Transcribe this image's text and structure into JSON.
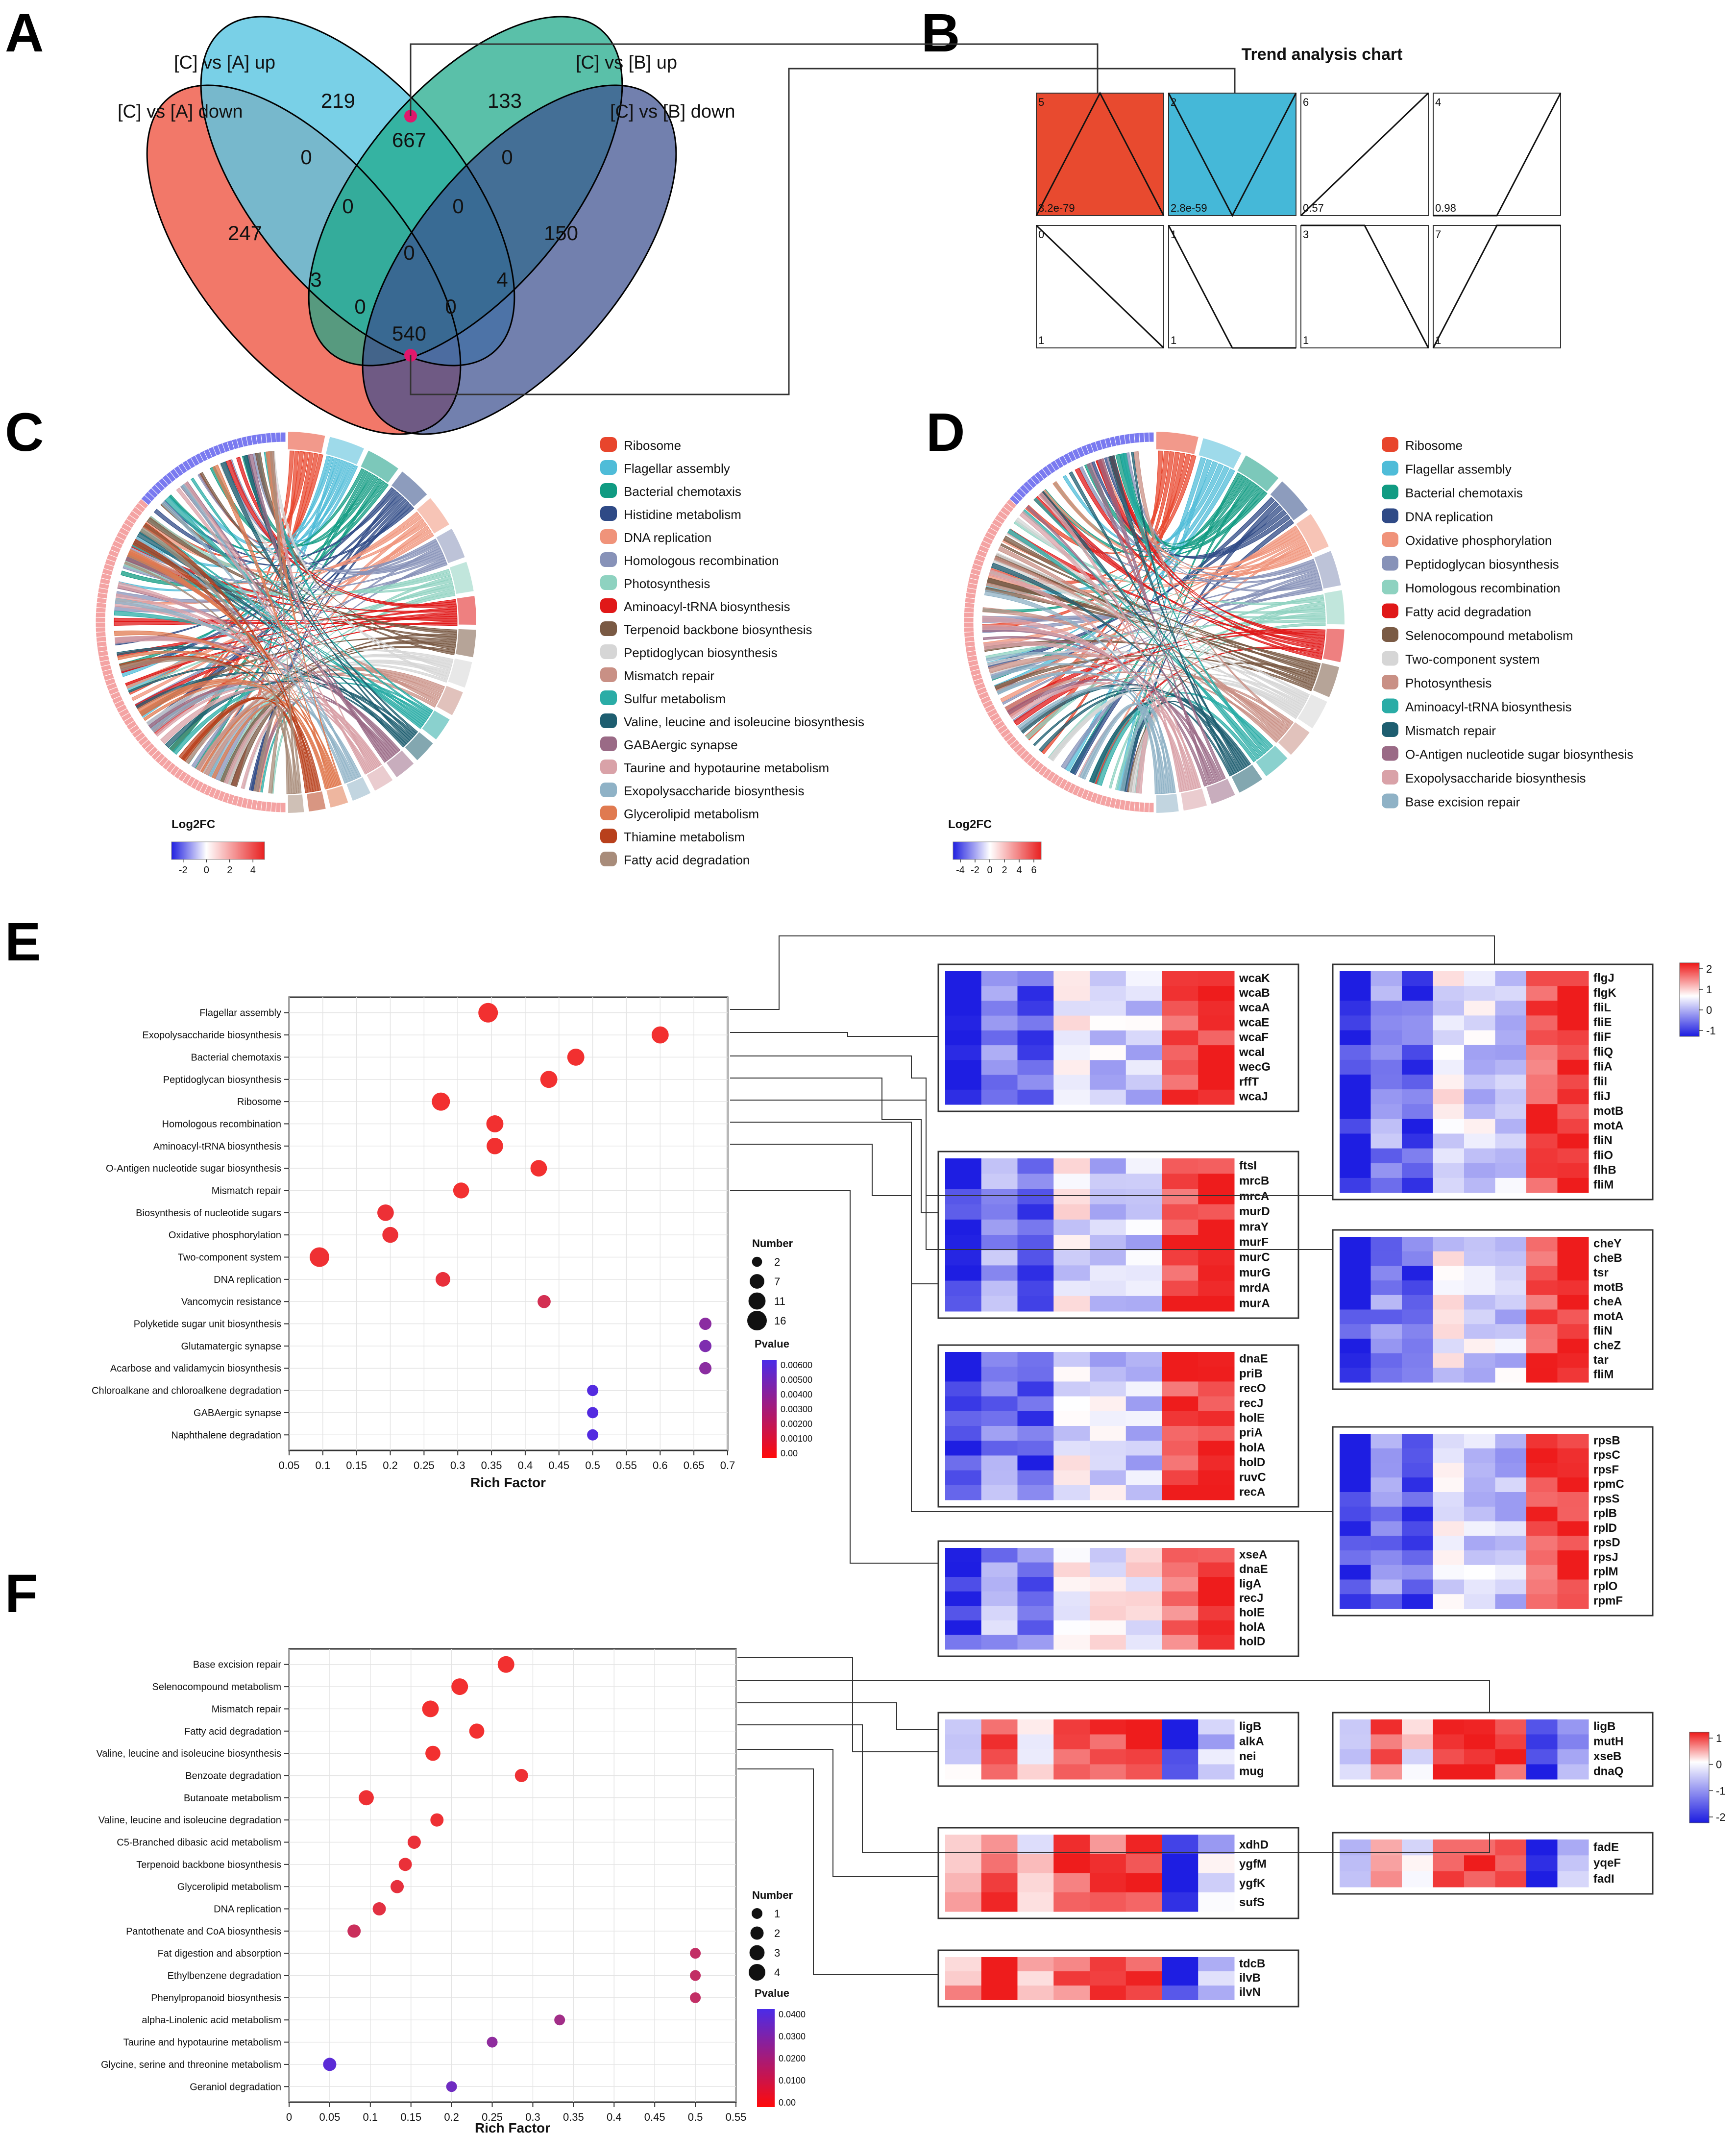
{
  "figure": {
    "panel_labels": [
      "A",
      "B",
      "C",
      "D",
      "E",
      "F"
    ]
  },
  "colors": {
    "red": "#ef3a3a",
    "bubble_red": "#f23030",
    "purple": "#6633cc",
    "heat_red": "#ee2020",
    "heat_blue": "#2323e6",
    "venn_up_ca": "#5cc6e2",
    "venn_up_cb": "#1aa888",
    "venn_down_ca": "#ef5a48",
    "venn_down_cb": "#3b4f8f",
    "trend_red": "#e84a2f",
    "trend_blue": "#45b8d8"
  },
  "chart_data": [
    {
      "panel": "A",
      "type": "venn",
      "sets": [
        "[C] vs [A] down",
        "[C] vs [A] up",
        "[C] vs [B] up",
        "[C] vs [B] down"
      ],
      "counts": [
        {
          "region": "A_up_only",
          "value": "219"
        },
        {
          "region": "B_up_only",
          "value": "133"
        },
        {
          "region": "A_down_only",
          "value": "247"
        },
        {
          "region": "B_down_only",
          "value": "150"
        },
        {
          "region": "A_up_B_up",
          "value": "667"
        },
        {
          "region": "A_down_A_up",
          "value": "0"
        },
        {
          "region": "B_up_B_down",
          "value": "0"
        },
        {
          "region": "A_down_A_up_B_up",
          "value": "0"
        },
        {
          "region": "A_up_B_up_B_down",
          "value": "0"
        },
        {
          "region": "all_four",
          "value": "0"
        },
        {
          "region": "A_down_B_up",
          "value": "3"
        },
        {
          "region": "A_up_B_down",
          "value": "4"
        },
        {
          "region": "A_down_B_up_B_down",
          "value": "0"
        },
        {
          "region": "A_down_A_up_B_down",
          "value": "0"
        },
        {
          "region": "A_down_B_down",
          "value": "540"
        }
      ]
    },
    {
      "panel": "B",
      "type": "trend",
      "title": "Trend analysis chart",
      "profiles": [
        {
          "id": "5",
          "pvalue": "3.2e-79",
          "shape": [
            0,
            1,
            0
          ],
          "fill": "red"
        },
        {
          "id": "2",
          "pvalue": "2.8e-59",
          "shape": [
            1,
            0,
            1
          ],
          "fill": "blue"
        },
        {
          "id": "6",
          "pvalue": "0.57",
          "shape": [
            0,
            0.5,
            1
          ],
          "fill": "none"
        },
        {
          "id": "4",
          "pvalue": "0.98",
          "shape": [
            0,
            0,
            1
          ],
          "fill": "none"
        },
        {
          "id": "0",
          "pvalue": "1",
          "shape": [
            1,
            0.5,
            0
          ],
          "fill": "none"
        },
        {
          "id": "1",
          "pvalue": "1",
          "shape": [
            1,
            0,
            0
          ],
          "fill": "none"
        },
        {
          "id": "3",
          "pvalue": "1",
          "shape": [
            1,
            1,
            0
          ],
          "fill": "none"
        },
        {
          "id": "7",
          "pvalue": "1",
          "shape": [
            0,
            1,
            1
          ],
          "fill": "none"
        }
      ]
    },
    {
      "panel": "C",
      "type": "chord",
      "colorbar_title": "Log2FC",
      "colorbar_ticks": [
        "-2",
        "0",
        "2",
        "4"
      ],
      "colorbar_range": [
        -3,
        5
      ],
      "legend": [
        {
          "label": "Ribosome",
          "color": "#e8452c"
        },
        {
          "label": "Flagellar assembly",
          "color": "#4fbcd8"
        },
        {
          "label": "Bacterial chemotaxis",
          "color": "#109b82"
        },
        {
          "label": "Histidine metabolism",
          "color": "#2f4a86"
        },
        {
          "label": "DNA replication",
          "color": "#f0937a"
        },
        {
          "label": "Homologous recombination",
          "color": "#8792b8"
        },
        {
          "label": "Photosynthesis",
          "color": "#8ed2c0"
        },
        {
          "label": "Aminoacyl-tRNA biosynthesis",
          "color": "#e01818"
        },
        {
          "label": "Terpenoid backbone biosynthesis",
          "color": "#7a5a44"
        },
        {
          "label": "Peptidoglycan biosynthesis",
          "color": "#d6d6d6"
        },
        {
          "label": "Mismatch repair",
          "color": "#c99085"
        },
        {
          "label": "Sulfur metabolism",
          "color": "#2aaca6"
        },
        {
          "label": "Valine, leucine and isoleucine biosynthesis",
          "color": "#1e5e70"
        },
        {
          "label": "GABAergic synapse",
          "color": "#9a6a86"
        },
        {
          "label": "Taurine and hypotaurine metabolism",
          "color": "#d9a2a8"
        },
        {
          "label": "Exopolysaccharide biosynthesis",
          "color": "#8fb2c6"
        },
        {
          "label": "Glycerolipid metabolism",
          "color": "#e07a50"
        },
        {
          "label": "Thiamine metabolism",
          "color": "#b8401c"
        },
        {
          "label": "Fatty acid degradation",
          "color": "#a88c7a"
        }
      ]
    },
    {
      "panel": "D",
      "type": "chord",
      "colorbar_title": "Log2FC",
      "colorbar_ticks": [
        "-4",
        "-2",
        "0",
        "2",
        "4",
        "6"
      ],
      "colorbar_range": [
        -5,
        7
      ],
      "legend": [
        {
          "label": "Ribosome",
          "color": "#e8452c"
        },
        {
          "label": "Flagellar assembly",
          "color": "#4fbcd8"
        },
        {
          "label": "Bacterial chemotaxis",
          "color": "#109b82"
        },
        {
          "label": "DNA replication",
          "color": "#2f4a86"
        },
        {
          "label": "Oxidative phosphorylation",
          "color": "#f0937a"
        },
        {
          "label": "Peptidoglycan biosynthesis",
          "color": "#8792b8"
        },
        {
          "label": "Homologous recombination",
          "color": "#8ed2c0"
        },
        {
          "label": "Fatty acid degradation",
          "color": "#e01818"
        },
        {
          "label": "Selenocompound metabolism",
          "color": "#7a5a44"
        },
        {
          "label": "Two-component system",
          "color": "#d6d6d6"
        },
        {
          "label": "Photosynthesis",
          "color": "#c99085"
        },
        {
          "label": "Aminoacyl-tRNA biosynthesis",
          "color": "#2aaca6"
        },
        {
          "label": "Mismatch repair",
          "color": "#1e5e70"
        },
        {
          "label": "O-Antigen nucleotide sugar biosynthesis",
          "color": "#9a6a86"
        },
        {
          "label": "Exopolysaccharide biosynthesis",
          "color": "#d9a2a8"
        },
        {
          "label": "Base excision repair",
          "color": "#8fb2c6"
        }
      ]
    },
    {
      "panel": "E",
      "type": "scatter",
      "xlabel": "Rich Factor",
      "xlim": [
        0.05,
        0.7
      ],
      "xticks": [
        "0.05",
        "0.1",
        "0.15",
        "0.2",
        "0.25",
        "0.3",
        "0.35",
        "0.4",
        "0.45",
        "0.5",
        "0.55",
        "0.6",
        "0.65",
        "0.7"
      ],
      "size_legend_title": "Number",
      "size_legend": [
        "2",
        "7",
        "11",
        "16"
      ],
      "color_legend_title": "Pvalue",
      "color_legend_ticks": [
        "0.00600",
        "0.00500",
        "0.00400",
        "0.00300",
        "0.00200",
        "0.00100",
        "0.00"
      ],
      "color_range": [
        0,
        0.0065
      ],
      "terms": [
        {
          "name": "Flagellar assembly",
          "x": 0.345,
          "count": 16,
          "p": 0.0
        },
        {
          "name": "Exopolysaccharide biosynthesis",
          "x": 0.6,
          "count": 11,
          "p": 0.0
        },
        {
          "name": "Bacterial chemotaxis",
          "x": 0.475,
          "count": 11,
          "p": 0.0
        },
        {
          "name": "Peptidoglycan biosynthesis",
          "x": 0.435,
          "count": 11,
          "p": 0.0
        },
        {
          "name": "Ribosome",
          "x": 0.275,
          "count": 13,
          "p": 0.0
        },
        {
          "name": "Homologous recombination",
          "x": 0.355,
          "count": 11,
          "p": 0.0
        },
        {
          "name": "Aminoacyl-tRNA biosynthesis",
          "x": 0.355,
          "count": 10,
          "p": 0.0
        },
        {
          "name": "O-Antigen nucleotide sugar biosynthesis",
          "x": 0.42,
          "count": 10,
          "p": 0.0
        },
        {
          "name": "Mismatch repair",
          "x": 0.305,
          "count": 9,
          "p": 0.0
        },
        {
          "name": "Biosynthesis of nucleotide sugars",
          "x": 0.193,
          "count": 10,
          "p": 0.0002
        },
        {
          "name": "Oxidative phosphorylation",
          "x": 0.2,
          "count": 9,
          "p": 0.0002
        },
        {
          "name": "Two-component system",
          "x": 0.095,
          "count": 16,
          "p": 0.0001
        },
        {
          "name": "DNA replication",
          "x": 0.278,
          "count": 7,
          "p": 0.0004
        },
        {
          "name": "Vancomycin resistance",
          "x": 0.428,
          "count": 5,
          "p": 0.0012
        },
        {
          "name": "Polyketide sugar unit biosynthesis",
          "x": 0.667,
          "count": 4,
          "p": 0.004
        },
        {
          "name": "Glutamatergic synapse",
          "x": 0.667,
          "count": 4,
          "p": 0.0045
        },
        {
          "name": "Acarbose and validamycin biosynthesis",
          "x": 0.667,
          "count": 4,
          "p": 0.004
        },
        {
          "name": "Chloroalkane and chloroalkene degradation",
          "x": 0.5,
          "count": 3,
          "p": 0.0062
        },
        {
          "name": "GABAergic synapse",
          "x": 0.5,
          "count": 3,
          "p": 0.0062
        },
        {
          "name": "Naphthalene degradation",
          "x": 0.5,
          "count": 3,
          "p": 0.0062
        }
      ],
      "heatmaps": [
        {
          "id": "wca",
          "genes": [
            "wcaK",
            "wcaB",
            "wcaA",
            "wcaE",
            "wcaF",
            "wcaI",
            "wecG",
            "rffT",
            "wcaJ"
          ]
        },
        {
          "id": "flg",
          "genes": [
            "flgJ",
            "flgK",
            "fliL",
            "fliE",
            "fliF",
            "fliQ",
            "fliA",
            "fliI",
            "fliJ",
            "motB",
            "motA",
            "fliN",
            "fliO",
            "flhB",
            "fliM"
          ]
        },
        {
          "id": "mur",
          "genes": [
            "ftsI",
            "mrcB",
            "mrcA",
            "murD",
            "mraY",
            "murF",
            "murC",
            "murG",
            "mrdA",
            "murA"
          ]
        },
        {
          "id": "che",
          "genes": [
            "cheY",
            "cheB",
            "tsr",
            "motB",
            "cheA",
            "motA",
            "fliN",
            "cheZ",
            "tar",
            "fliM"
          ]
        },
        {
          "id": "dna",
          "genes": [
            "dnaE",
            "priB",
            "recO",
            "recJ",
            "holE",
            "priA",
            "holA",
            "holD",
            "ruvC",
            "recA"
          ]
        },
        {
          "id": "rps",
          "genes": [
            "rpsB",
            "rpsC",
            "rpsF",
            "rpmC",
            "rpsS",
            "rplB",
            "rplD",
            "rpsD",
            "rpsJ",
            "rplM",
            "rplO",
            "rpmF"
          ]
        },
        {
          "id": "xse",
          "genes": [
            "xseA",
            "dnaE",
            "ligA",
            "recJ",
            "holE",
            "holA",
            "holD"
          ]
        }
      ],
      "heat_colorbar_ticks": [
        "2",
        "1",
        "0",
        "-1"
      ]
    },
    {
      "panel": "F",
      "type": "scatter",
      "xlabel": "Rich Factor",
      "xlim": [
        0,
        0.55
      ],
      "xticks": [
        "0",
        "0.05",
        "0.1",
        "0.15",
        "0.2",
        "0.25",
        "0.3",
        "0.35",
        "0.4",
        "0.45",
        "0.5",
        "0.55"
      ],
      "size_legend_title": "Number",
      "size_legend": [
        "1",
        "2",
        "3",
        "4"
      ],
      "color_legend_title": "Pvalue",
      "color_legend_ticks": [
        "0.0400",
        "0.0300",
        "0.0200",
        "0.0100",
        "0.00"
      ],
      "color_range": [
        0,
        0.042
      ],
      "terms": [
        {
          "name": "Base excision repair",
          "x": 0.267,
          "count": 4,
          "p": 0.0
        },
        {
          "name": "Selenocompound metabolism",
          "x": 0.21,
          "count": 4,
          "p": 0.0
        },
        {
          "name": "Mismatch repair",
          "x": 0.174,
          "count": 4,
          "p": 0.0
        },
        {
          "name": "Fatty acid degradation",
          "x": 0.231,
          "count": 3,
          "p": 0.0
        },
        {
          "name": "Valine, leucine and isoleucine biosynthesis",
          "x": 0.177,
          "count": 3,
          "p": 0.0
        },
        {
          "name": "Benzoate degradation",
          "x": 0.286,
          "count": 2,
          "p": 0.001
        },
        {
          "name": "Butanoate metabolism",
          "x": 0.095,
          "count": 3,
          "p": 0.001
        },
        {
          "name": "Valine, leucine and isoleucine degradation",
          "x": 0.182,
          "count": 2,
          "p": 0.001
        },
        {
          "name": "C5-Branched dibasic acid metabolism",
          "x": 0.154,
          "count": 2,
          "p": 0.002
        },
        {
          "name": "Terpenoid backbone biosynthesis",
          "x": 0.143,
          "count": 2,
          "p": 0.002
        },
        {
          "name": "Glycerolipid metabolism",
          "x": 0.133,
          "count": 2,
          "p": 0.003
        },
        {
          "name": "DNA replication",
          "x": 0.111,
          "count": 2,
          "p": 0.004
        },
        {
          "name": "Pantothenate and CoA biosynthesis",
          "x": 0.08,
          "count": 2,
          "p": 0.01
        },
        {
          "name": "Fat digestion and absorption",
          "x": 0.5,
          "count": 1,
          "p": 0.012
        },
        {
          "name": "Ethylbenzene degradation",
          "x": 0.5,
          "count": 1,
          "p": 0.012
        },
        {
          "name": "Phenylpropanoid biosynthesis",
          "x": 0.5,
          "count": 1,
          "p": 0.012
        },
        {
          "name": "alpha-Linolenic acid metabolism",
          "x": 0.333,
          "count": 1,
          "p": 0.02
        },
        {
          "name": "Taurine and hypotaurine metabolism",
          "x": 0.25,
          "count": 1,
          "p": 0.025
        },
        {
          "name": "Glycine, serine and threonine metabolism",
          "x": 0.05,
          "count": 2,
          "p": 0.038
        },
        {
          "name": "Geraniol degradation",
          "x": 0.2,
          "count": 1,
          "p": 0.033
        }
      ],
      "heatmaps": [
        {
          "id": "lig1",
          "genes": [
            "ligB",
            "alkA",
            "nei",
            "mug"
          ]
        },
        {
          "id": "lig2",
          "genes": [
            "ligB",
            "mutH",
            "xseB",
            "dnaQ"
          ]
        },
        {
          "id": "xdh",
          "genes": [
            "xdhD",
            "ygfM",
            "ygfK",
            "sufS"
          ]
        },
        {
          "id": "fad",
          "genes": [
            "fadE",
            "yqeF",
            "fadI"
          ]
        },
        {
          "id": "tdc",
          "genes": [
            "tdcB",
            "ilvB",
            "ilvN"
          ]
        }
      ],
      "heat_colorbar_ticks": [
        "1",
        "0",
        "-1",
        "-2"
      ]
    }
  ]
}
